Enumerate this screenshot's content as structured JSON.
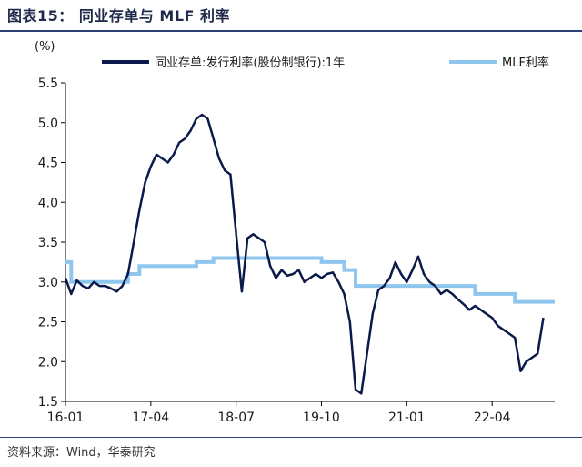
{
  "figure_title": "图表15： 同业存单与 MLF 利率",
  "source_text": "资料来源：Wind，华泰研究",
  "chart_data": {
    "type": "line",
    "ylabel": "(%)",
    "ylim": [
      1.5,
      5.5
    ],
    "yticks": [
      "1.5",
      "2.0",
      "2.5",
      "3.0",
      "3.5",
      "4.0",
      "4.5",
      "5.0",
      "5.5"
    ],
    "xlim": [
      "2016-01",
      "2023-03"
    ],
    "xticks": [
      "16-01",
      "17-04",
      "18-07",
      "19-10",
      "21-01",
      "22-04"
    ],
    "xtick_dates": [
      "2016-01",
      "2017-04",
      "2018-07",
      "2019-10",
      "2021-01",
      "2022-04"
    ],
    "grid": false,
    "legend_position": "top",
    "series": [
      {
        "name": "同业存单:发行利率(股份制银行):1年",
        "color": "#0b1a4a",
        "points": [
          [
            "2016-01",
            3.05
          ],
          [
            "2016-02",
            2.85
          ],
          [
            "2016-03",
            3.02
          ],
          [
            "2016-04",
            2.95
          ],
          [
            "2016-05",
            2.92
          ],
          [
            "2016-06",
            3.0
          ],
          [
            "2016-07",
            2.95
          ],
          [
            "2016-08",
            2.95
          ],
          [
            "2016-09",
            2.92
          ],
          [
            "2016-10",
            2.88
          ],
          [
            "2016-11",
            2.95
          ],
          [
            "2016-12",
            3.1
          ],
          [
            "2017-01",
            3.5
          ],
          [
            "2017-02",
            3.9
          ],
          [
            "2017-03",
            4.25
          ],
          [
            "2017-04",
            4.45
          ],
          [
            "2017-05",
            4.6
          ],
          [
            "2017-06",
            4.55
          ],
          [
            "2017-07",
            4.5
          ],
          [
            "2017-08",
            4.6
          ],
          [
            "2017-09",
            4.75
          ],
          [
            "2017-10",
            4.8
          ],
          [
            "2017-11",
            4.9
          ],
          [
            "2017-12",
            5.05
          ],
          [
            "2018-01",
            5.1
          ],
          [
            "2018-02",
            5.05
          ],
          [
            "2018-03",
            4.8
          ],
          [
            "2018-04",
            4.55
          ],
          [
            "2018-05",
            4.4
          ],
          [
            "2018-06",
            4.35
          ],
          [
            "2018-07",
            3.6
          ],
          [
            "2018-08",
            2.88
          ],
          [
            "2018-09",
            3.55
          ],
          [
            "2018-10",
            3.6
          ],
          [
            "2018-11",
            3.55
          ],
          [
            "2018-12",
            3.5
          ],
          [
            "2019-01",
            3.2
          ],
          [
            "2019-02",
            3.05
          ],
          [
            "2019-03",
            3.15
          ],
          [
            "2019-04",
            3.08
          ],
          [
            "2019-05",
            3.1
          ],
          [
            "2019-06",
            3.15
          ],
          [
            "2019-07",
            3.0
          ],
          [
            "2019-08",
            3.05
          ],
          [
            "2019-09",
            3.1
          ],
          [
            "2019-10",
            3.05
          ],
          [
            "2019-11",
            3.1
          ],
          [
            "2019-12",
            3.12
          ],
          [
            "2020-01",
            3.0
          ],
          [
            "2020-02",
            2.85
          ],
          [
            "2020-03",
            2.5
          ],
          [
            "2020-04",
            1.65
          ],
          [
            "2020-05",
            1.6
          ],
          [
            "2020-06",
            2.1
          ],
          [
            "2020-07",
            2.6
          ],
          [
            "2020-08",
            2.9
          ],
          [
            "2020-09",
            2.95
          ],
          [
            "2020-10",
            3.05
          ],
          [
            "2020-11",
            3.25
          ],
          [
            "2020-12",
            3.1
          ],
          [
            "2021-01",
            3.0
          ],
          [
            "2021-02",
            3.15
          ],
          [
            "2021-03",
            3.32
          ],
          [
            "2021-04",
            3.1
          ],
          [
            "2021-05",
            3.0
          ],
          [
            "2021-06",
            2.95
          ],
          [
            "2021-07",
            2.85
          ],
          [
            "2021-08",
            2.9
          ],
          [
            "2021-09",
            2.85
          ],
          [
            "2021-10",
            2.78
          ],
          [
            "2021-11",
            2.72
          ],
          [
            "2021-12",
            2.65
          ],
          [
            "2022-01",
            2.7
          ],
          [
            "2022-02",
            2.65
          ],
          [
            "2022-03",
            2.6
          ],
          [
            "2022-04",
            2.55
          ],
          [
            "2022-05",
            2.45
          ],
          [
            "2022-06",
            2.4
          ],
          [
            "2022-07",
            2.35
          ],
          [
            "2022-08",
            2.3
          ],
          [
            "2022-09",
            1.88
          ],
          [
            "2022-10",
            2.0
          ],
          [
            "2022-11",
            2.05
          ],
          [
            "2022-12",
            2.1
          ],
          [
            "2023-01",
            2.55
          ]
        ]
      },
      {
        "name": "MLF利率",
        "color": "#8fc6ee",
        "step": true,
        "points": [
          [
            "2016-01",
            3.25
          ],
          [
            "2016-02",
            3.0
          ],
          [
            "2016-12",
            3.1
          ],
          [
            "2017-02",
            3.2
          ],
          [
            "2017-12",
            3.25
          ],
          [
            "2018-03",
            3.3
          ],
          [
            "2019-10",
            3.25
          ],
          [
            "2020-02",
            3.15
          ],
          [
            "2020-04",
            2.95
          ],
          [
            "2022-01",
            2.85
          ],
          [
            "2022-08",
            2.75
          ],
          [
            "2023-03",
            2.75
          ]
        ]
      }
    ]
  }
}
